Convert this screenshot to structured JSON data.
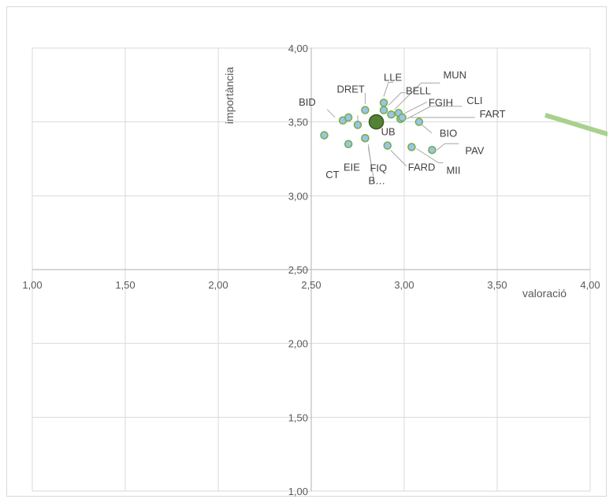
{
  "chart_data": {
    "type": "scatter",
    "title": "",
    "xlabel": "valoració",
    "ylabel": "importància",
    "xlim": [
      1.0,
      4.0
    ],
    "ylim": [
      1.0,
      4.0
    ],
    "x_ticks": [
      "1,00",
      "1,50",
      "2,00",
      "2,50",
      "3,00",
      "3,50",
      "4,00"
    ],
    "y_ticks": [
      "1,00",
      "1,50",
      "2,00",
      "2,50",
      "3,00",
      "3,50",
      "4,00"
    ],
    "axis_cross": {
      "x": 2.5,
      "y": 2.5
    },
    "grid": true,
    "colors": {
      "point_fill": "#9dc3e6",
      "point_stroke": "#70ad47",
      "highlight_fill": "#548235",
      "highlight_stroke": "#375623",
      "arrow": "#a9d18e",
      "grid": "#d9d9d9",
      "axis": "#bfbfbf"
    },
    "points": [
      {
        "label": "",
        "x": 2.57,
        "y": 3.41
      },
      {
        "label": "CT",
        "x": 2.7,
        "y": 3.35
      },
      {
        "label": "EIE",
        "x": 2.75,
        "y": 3.48
      },
      {
        "label": "B…",
        "x": 2.79,
        "y": 3.39
      },
      {
        "label": "BID",
        "x": 2.67,
        "y": 3.51
      },
      {
        "label": "",
        "x": 2.7,
        "y": 3.53
      },
      {
        "label": "DRET",
        "x": 2.79,
        "y": 3.58
      },
      {
        "label": "LLE",
        "x": 2.89,
        "y": 3.63
      },
      {
        "label": "BELL",
        "x": 2.89,
        "y": 3.58
      },
      {
        "label": "MUN",
        "x": 2.93,
        "y": 3.55
      },
      {
        "label": "FGIH",
        "x": 2.97,
        "y": 3.56
      },
      {
        "label": "CLI",
        "x": 2.98,
        "y": 3.52
      },
      {
        "label": "FART",
        "x": 2.99,
        "y": 3.53
      },
      {
        "label": "BIO",
        "x": 3.08,
        "y": 3.5
      },
      {
        "label": "PAV",
        "x": 3.15,
        "y": 3.31
      },
      {
        "label": "MII",
        "x": 3.04,
        "y": 3.33
      },
      {
        "label": "FARD",
        "x": 2.91,
        "y": 3.34
      },
      {
        "label": "FIQ",
        "x": 2.79,
        "y": 3.39
      }
    ],
    "highlight": {
      "label": "UB",
      "x": 2.85,
      "y": 3.5
    }
  }
}
